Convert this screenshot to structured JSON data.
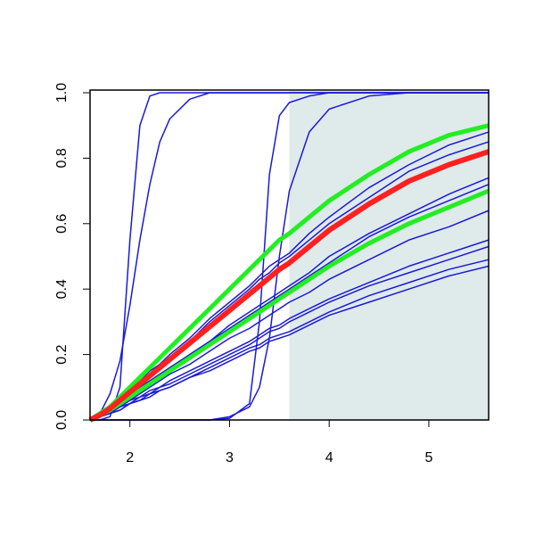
{
  "chart_data": {
    "type": "line",
    "x": [
      1.6,
      1.7,
      1.8,
      1.9,
      2.0,
      2.1,
      2.2,
      2.3,
      2.4,
      2.6,
      2.8,
      3.0,
      3.2,
      3.3,
      3.4,
      3.5,
      3.6,
      3.8,
      4.0,
      4.4,
      4.8,
      5.2,
      5.6
    ],
    "xlim": [
      1.6,
      5.6
    ],
    "xticks": [
      2,
      3,
      4,
      5
    ],
    "ylim": [
      0,
      1
    ],
    "yticks": [
      {
        "value": 0,
        "label": "0.0"
      },
      {
        "value": 0.2,
        "label": "0.2"
      },
      {
        "value": 0.4,
        "label": "0.4"
      },
      {
        "value": 0.6,
        "label": "0.6"
      },
      {
        "value": 0.8,
        "label": "0.8"
      },
      {
        "value": 1,
        "label": "1.0"
      }
    ],
    "shaded_region": [
      3.6,
      5.6
    ],
    "shade_color": "#dfeaea",
    "series": [
      {
        "color": "#1a1ad8",
        "width": 1.5,
        "values": [
          0,
          0,
          0.01,
          0.1,
          0.55,
          0.9,
          0.99,
          1,
          1,
          1,
          1,
          1,
          1,
          1,
          1,
          1,
          1,
          1,
          1,
          1,
          1,
          1,
          1
        ]
      },
      {
        "color": "#1a1ad8",
        "width": 1.5,
        "values": [
          0,
          0.02,
          0.08,
          0.18,
          0.35,
          0.55,
          0.72,
          0.85,
          0.92,
          0.98,
          1,
          1,
          1,
          1,
          1,
          1,
          1,
          1,
          1,
          1,
          1,
          1,
          1
        ]
      },
      {
        "color": "#1a1ad8",
        "width": 1.5,
        "values": [
          0,
          0,
          0,
          0,
          0,
          0,
          0,
          0,
          0,
          0,
          0,
          0.005,
          0.05,
          0.3,
          0.75,
          0.93,
          0.97,
          0.99,
          1,
          1,
          1,
          1,
          1
        ]
      },
      {
        "color": "#1a1ad8",
        "width": 1.5,
        "values": [
          0,
          0,
          0,
          0,
          0,
          0,
          0,
          0,
          0,
          0,
          0,
          0.01,
          0.04,
          0.1,
          0.25,
          0.5,
          0.7,
          0.88,
          0.95,
          0.99,
          1,
          1,
          1
        ]
      },
      {
        "color": "#1a1ad8",
        "width": 1.5,
        "values": [
          0,
          0.02,
          0.04,
          0.06,
          0.09,
          0.12,
          0.15,
          0.17,
          0.2,
          0.25,
          0.31,
          0.36,
          0.41,
          0.44,
          0.47,
          0.49,
          0.51,
          0.57,
          0.62,
          0.71,
          0.78,
          0.84,
          0.88
        ]
      },
      {
        "color": "#1a1ad8",
        "width": 1.5,
        "values": [
          0,
          0.02,
          0.04,
          0.06,
          0.09,
          0.11,
          0.14,
          0.17,
          0.19,
          0.24,
          0.3,
          0.35,
          0.4,
          0.43,
          0.45,
          0.48,
          0.5,
          0.55,
          0.6,
          0.68,
          0.76,
          0.81,
          0.85
        ]
      },
      {
        "color": "#1a1ad8",
        "width": 1.5,
        "values": [
          0,
          0.02,
          0.03,
          0.05,
          0.07,
          0.1,
          0.12,
          0.14,
          0.16,
          0.2,
          0.24,
          0.29,
          0.33,
          0.35,
          0.37,
          0.39,
          0.41,
          0.45,
          0.5,
          0.57,
          0.63,
          0.69,
          0.74
        ]
      },
      {
        "color": "#1a1ad8",
        "width": 1.5,
        "values": [
          0,
          0.02,
          0.03,
          0.05,
          0.07,
          0.09,
          0.11,
          0.13,
          0.15,
          0.2,
          0.24,
          0.28,
          0.32,
          0.34,
          0.36,
          0.38,
          0.4,
          0.44,
          0.48,
          0.56,
          0.62,
          0.67,
          0.72
        ]
      },
      {
        "color": "#1a1ad8",
        "width": 1.5,
        "values": [
          0,
          0.01,
          0.03,
          0.05,
          0.06,
          0.08,
          0.1,
          0.12,
          0.14,
          0.17,
          0.21,
          0.25,
          0.28,
          0.3,
          0.32,
          0.34,
          0.36,
          0.39,
          0.43,
          0.49,
          0.55,
          0.59,
          0.64
        ]
      },
      {
        "color": "#1a1ad8",
        "width": 1.5,
        "values": [
          0,
          0.01,
          0.02,
          0.04,
          0.06,
          0.07,
          0.09,
          0.1,
          0.12,
          0.15,
          0.18,
          0.21,
          0.24,
          0.26,
          0.28,
          0.29,
          0.31,
          0.34,
          0.37,
          0.42,
          0.47,
          0.51,
          0.55
        ]
      },
      {
        "color": "#1a1ad8",
        "width": 1.5,
        "values": [
          0,
          0.01,
          0.02,
          0.04,
          0.05,
          0.07,
          0.08,
          0.1,
          0.11,
          0.14,
          0.17,
          0.2,
          0.23,
          0.25,
          0.27,
          0.28,
          0.3,
          0.33,
          0.36,
          0.41,
          0.45,
          0.49,
          0.53
        ]
      },
      {
        "color": "#1a1ad8",
        "width": 1.5,
        "values": [
          0,
          0.01,
          0.02,
          0.03,
          0.05,
          0.06,
          0.08,
          0.09,
          0.1,
          0.13,
          0.16,
          0.19,
          0.22,
          0.23,
          0.25,
          0.26,
          0.27,
          0.3,
          0.33,
          0.38,
          0.42,
          0.46,
          0.49
        ]
      },
      {
        "color": "#1a1ad8",
        "width": 1.5,
        "values": [
          0,
          0.01,
          0.02,
          0.03,
          0.05,
          0.06,
          0.07,
          0.09,
          0.1,
          0.13,
          0.15,
          0.18,
          0.21,
          0.22,
          0.24,
          0.25,
          0.26,
          0.29,
          0.32,
          0.36,
          0.4,
          0.44,
          0.47
        ]
      },
      {
        "color": "#22ee22",
        "width": 5,
        "values": [
          0,
          0.015,
          0.03,
          0.05,
          0.07,
          0.09,
          0.11,
          0.13,
          0.15,
          0.19,
          0.23,
          0.27,
          0.31,
          0.33,
          0.35,
          0.37,
          0.39,
          0.43,
          0.47,
          0.54,
          0.6,
          0.65,
          0.7
        ]
      },
      {
        "color": "#22ee22",
        "width": 5,
        "values": [
          0,
          0.02,
          0.04,
          0.07,
          0.1,
          0.13,
          0.16,
          0.19,
          0.22,
          0.28,
          0.34,
          0.4,
          0.46,
          0.49,
          0.52,
          0.55,
          0.57,
          0.62,
          0.67,
          0.75,
          0.82,
          0.87,
          0.9
        ]
      },
      {
        "color": "#ff2020",
        "width": 6,
        "values": [
          0,
          0.015,
          0.035,
          0.06,
          0.085,
          0.11,
          0.135,
          0.16,
          0.185,
          0.235,
          0.285,
          0.335,
          0.385,
          0.41,
          0.435,
          0.46,
          0.48,
          0.53,
          0.58,
          0.66,
          0.73,
          0.78,
          0.82
        ]
      }
    ]
  }
}
